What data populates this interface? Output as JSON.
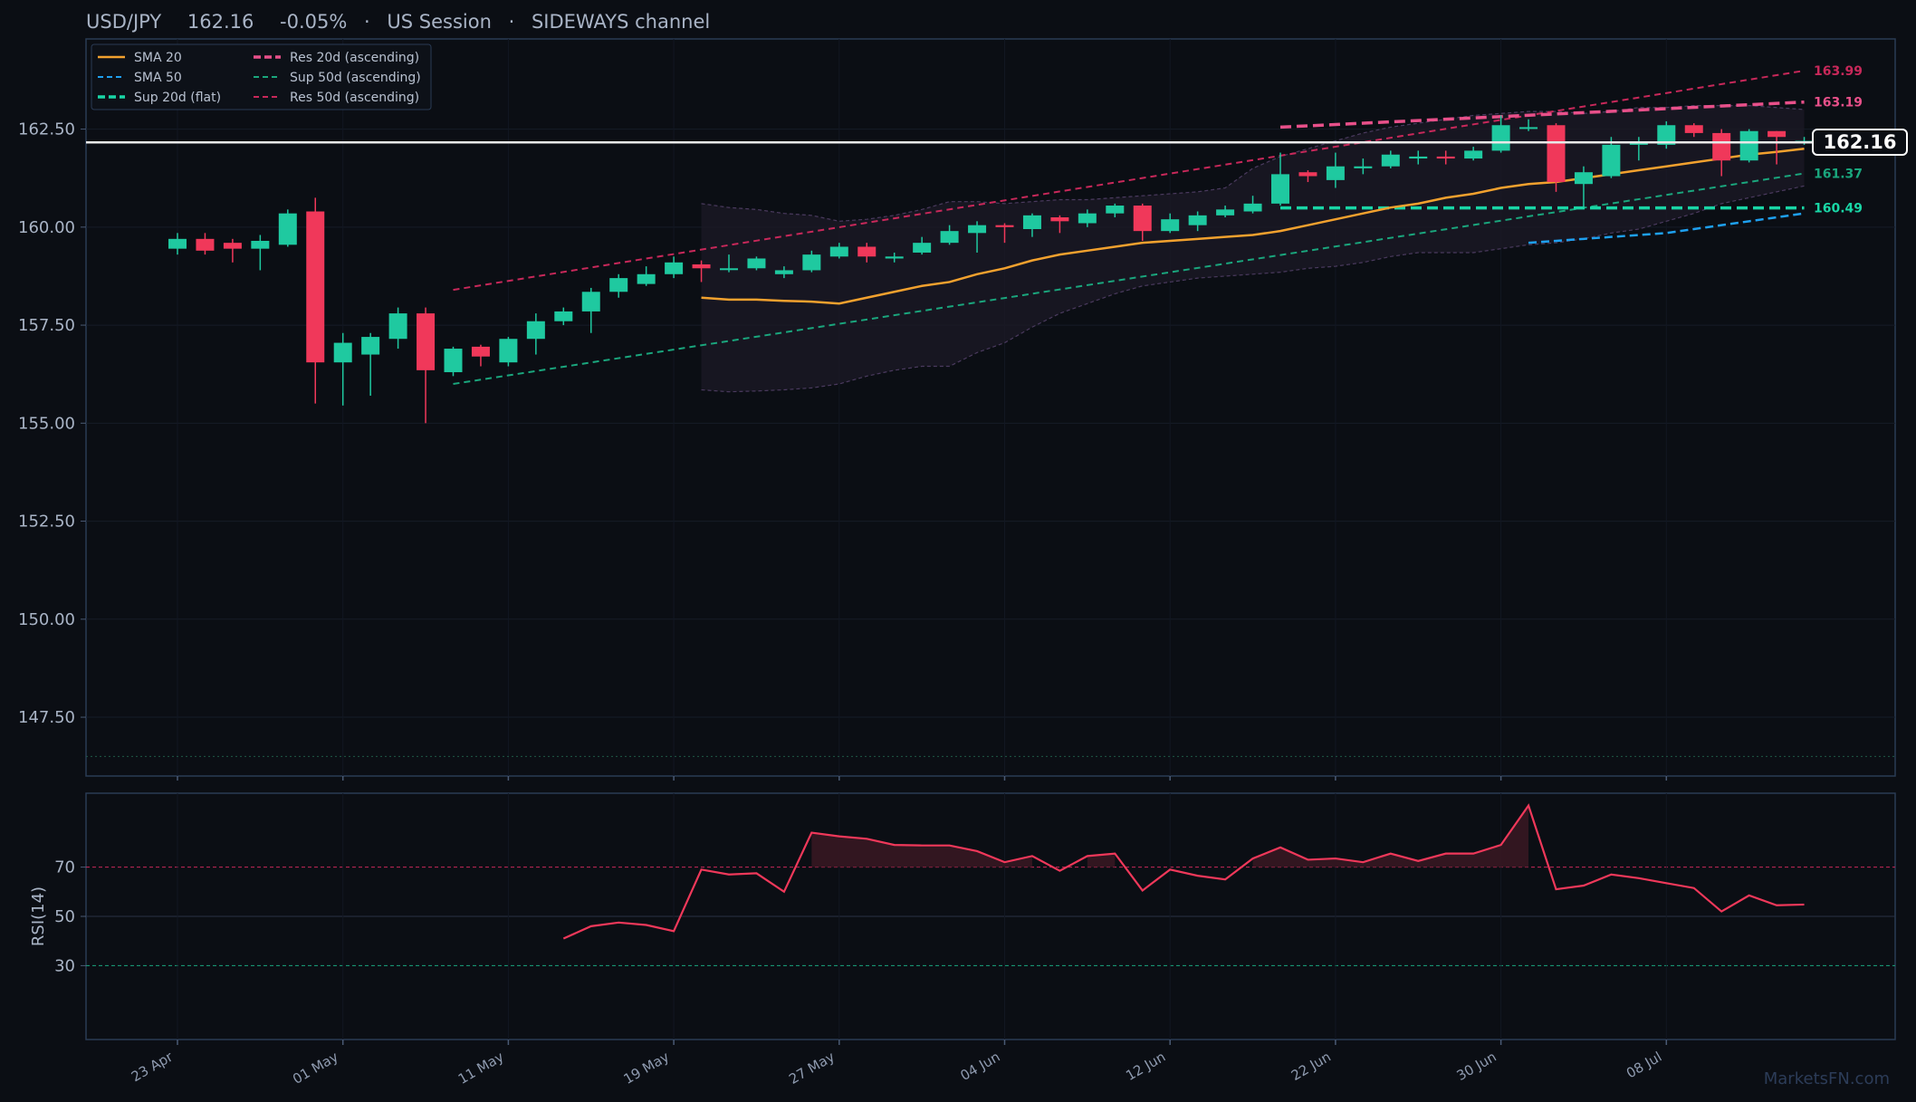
{
  "header": {
    "symbol": "USD/JPY",
    "price": "162.16",
    "change": "-0.05%",
    "session": "US Session",
    "channel": "SIDEWAYS channel"
  },
  "watermark": "MarketsFN.com",
  "current_price_label": "162.16",
  "colors": {
    "background": "#0b0e14",
    "panel_border": "#2a3b55",
    "up": "#1fc9a0",
    "down": "#f0385a",
    "sma20": "#f2a12e",
    "sma50": "#1ea0f0",
    "sup20": "#19d6a6",
    "res20": "#e8508a",
    "sup50": "#1aa67d",
    "res50": "#c8285a",
    "rsi": "#f0385a",
    "price_line": "#e8e8e8"
  },
  "legend": [
    {
      "label": "SMA 20",
      "key": "sma20",
      "dash": "solid"
    },
    {
      "label": "SMA 50",
      "key": "sma50",
      "dash": "dash"
    },
    {
      "label": "Sup 20d (flat)",
      "key": "sup20",
      "dash": "dash-bold"
    },
    {
      "label": "Res 20d (ascending)",
      "key": "res20",
      "dash": "dash-bold"
    },
    {
      "label": "Sup 50d (ascending)",
      "key": "sup50",
      "dash": "dash"
    },
    {
      "label": "Res 50d (ascending)",
      "key": "res50",
      "dash": "dash"
    }
  ],
  "end_labels": [
    {
      "text": "163.99",
      "value": 163.99,
      "key": "res50"
    },
    {
      "text": "163.19",
      "value": 163.19,
      "key": "res20"
    },
    {
      "text": "161.37",
      "value": 161.37,
      "key": "sup50"
    },
    {
      "text": "160.49",
      "value": 160.49,
      "key": "sup20"
    }
  ],
  "chart_data": [
    {
      "type": "candlestick",
      "title": "USD/JPY",
      "ylim": [
        146.0,
        164.8
      ],
      "yticks": [
        "147.50",
        "150.00",
        "152.50",
        "155.00",
        "157.50",
        "160.00",
        "162.50"
      ],
      "ytick_values": [
        147.5,
        150.0,
        152.5,
        155.0,
        157.5,
        160.0,
        162.5
      ],
      "x_tick_labels": [
        "23 Apr",
        "01 May",
        "11 May",
        "19 May",
        "27 May",
        "04 Jun",
        "12 Jun",
        "22 Jun",
        "30 Jun",
        "08 Jul"
      ],
      "x_tick_index": [
        0,
        6,
        12,
        18,
        24,
        30,
        36,
        42,
        48,
        54
      ],
      "current_price": 162.16,
      "candles": [
        {
          "o": 159.45,
          "h": 159.85,
          "l": 159.3,
          "c": 159.7
        },
        {
          "o": 159.7,
          "h": 159.85,
          "l": 159.3,
          "c": 159.4
        },
        {
          "o": 159.6,
          "h": 159.7,
          "l": 159.1,
          "c": 159.45
        },
        {
          "o": 159.45,
          "h": 159.8,
          "l": 158.9,
          "c": 159.65
        },
        {
          "o": 159.55,
          "h": 160.45,
          "l": 159.5,
          "c": 160.35
        },
        {
          "o": 160.4,
          "h": 160.75,
          "l": 155.5,
          "c": 156.55
        },
        {
          "o": 156.55,
          "h": 157.3,
          "l": 155.45,
          "c": 157.05
        },
        {
          "o": 156.75,
          "h": 157.3,
          "l": 155.7,
          "c": 157.2
        },
        {
          "o": 157.15,
          "h": 157.95,
          "l": 156.9,
          "c": 157.8
        },
        {
          "o": 157.8,
          "h": 157.95,
          "l": 155.0,
          "c": 156.35
        },
        {
          "o": 156.3,
          "h": 156.95,
          "l": 156.2,
          "c": 156.9
        },
        {
          "o": 156.95,
          "h": 157.0,
          "l": 156.45,
          "c": 156.7
        },
        {
          "o": 156.55,
          "h": 157.2,
          "l": 156.45,
          "c": 157.15
        },
        {
          "o": 157.15,
          "h": 157.8,
          "l": 156.75,
          "c": 157.6
        },
        {
          "o": 157.6,
          "h": 157.95,
          "l": 157.5,
          "c": 157.85
        },
        {
          "o": 157.85,
          "h": 158.45,
          "l": 157.3,
          "c": 158.35
        },
        {
          "o": 158.35,
          "h": 158.8,
          "l": 158.2,
          "c": 158.7
        },
        {
          "o": 158.55,
          "h": 159.0,
          "l": 158.5,
          "c": 158.8
        },
        {
          "o": 158.8,
          "h": 159.25,
          "l": 158.7,
          "c": 159.1
        },
        {
          "o": 159.05,
          "h": 159.15,
          "l": 158.6,
          "c": 158.95
        },
        {
          "o": 158.95,
          "h": 159.3,
          "l": 158.85,
          "c": 158.95
        },
        {
          "o": 158.95,
          "h": 159.25,
          "l": 158.9,
          "c": 159.2
        },
        {
          "o": 158.8,
          "h": 159.0,
          "l": 158.7,
          "c": 158.9
        },
        {
          "o": 158.9,
          "h": 159.4,
          "l": 158.85,
          "c": 159.3
        },
        {
          "o": 159.25,
          "h": 159.6,
          "l": 159.2,
          "c": 159.5
        },
        {
          "o": 159.5,
          "h": 159.6,
          "l": 159.1,
          "c": 159.25
        },
        {
          "o": 159.2,
          "h": 159.35,
          "l": 159.1,
          "c": 159.25
        },
        {
          "o": 159.35,
          "h": 159.75,
          "l": 159.3,
          "c": 159.6
        },
        {
          "o": 159.6,
          "h": 160.05,
          "l": 159.55,
          "c": 159.9
        },
        {
          "o": 159.85,
          "h": 160.15,
          "l": 159.35,
          "c": 160.05
        },
        {
          "o": 160.05,
          "h": 160.1,
          "l": 159.6,
          "c": 160.0
        },
        {
          "o": 159.95,
          "h": 160.35,
          "l": 159.75,
          "c": 160.3
        },
        {
          "o": 160.25,
          "h": 160.3,
          "l": 159.85,
          "c": 160.15
        },
        {
          "o": 160.1,
          "h": 160.45,
          "l": 160.0,
          "c": 160.35
        },
        {
          "o": 160.35,
          "h": 160.6,
          "l": 160.25,
          "c": 160.55
        },
        {
          "o": 160.55,
          "h": 160.6,
          "l": 159.65,
          "c": 159.9
        },
        {
          "o": 159.9,
          "h": 160.35,
          "l": 159.85,
          "c": 160.2
        },
        {
          "o": 160.05,
          "h": 160.4,
          "l": 159.9,
          "c": 160.3
        },
        {
          "o": 160.3,
          "h": 160.55,
          "l": 160.25,
          "c": 160.45
        },
        {
          "o": 160.4,
          "h": 160.8,
          "l": 160.35,
          "c": 160.6
        },
        {
          "o": 160.6,
          "h": 161.9,
          "l": 160.55,
          "c": 161.35
        },
        {
          "o": 161.4,
          "h": 161.45,
          "l": 161.15,
          "c": 161.3
        },
        {
          "o": 161.2,
          "h": 161.9,
          "l": 161.0,
          "c": 161.55
        },
        {
          "o": 161.5,
          "h": 161.75,
          "l": 161.35,
          "c": 161.55
        },
        {
          "o": 161.55,
          "h": 161.95,
          "l": 161.5,
          "c": 161.85
        },
        {
          "o": 161.75,
          "h": 161.95,
          "l": 161.6,
          "c": 161.8
        },
        {
          "o": 161.8,
          "h": 161.95,
          "l": 161.6,
          "c": 161.75
        },
        {
          "o": 161.75,
          "h": 162.05,
          "l": 161.7,
          "c": 161.95
        },
        {
          "o": 161.95,
          "h": 162.85,
          "l": 161.9,
          "c": 162.6
        },
        {
          "o": 162.55,
          "h": 162.75,
          "l": 162.45,
          "c": 162.55
        },
        {
          "o": 162.6,
          "h": 162.65,
          "l": 160.9,
          "c": 161.15
        },
        {
          "o": 161.1,
          "h": 161.55,
          "l": 160.5,
          "c": 161.4
        },
        {
          "o": 161.3,
          "h": 162.3,
          "l": 161.25,
          "c": 162.1
        },
        {
          "o": 162.1,
          "h": 162.3,
          "l": 161.7,
          "c": 162.15
        },
        {
          "o": 162.1,
          "h": 162.7,
          "l": 162.0,
          "c": 162.6
        },
        {
          "o": 162.6,
          "h": 162.65,
          "l": 162.3,
          "c": 162.4
        },
        {
          "o": 162.4,
          "h": 162.5,
          "l": 161.3,
          "c": 161.7
        },
        {
          "o": 161.7,
          "h": 162.5,
          "l": 161.65,
          "c": 162.45
        },
        {
          "o": 162.45,
          "h": 162.45,
          "l": 161.6,
          "c": 162.3
        },
        {
          "o": 162.2,
          "h": 162.3,
          "l": 162.1,
          "c": 162.2
        }
      ],
      "sma20": {
        "start": 19,
        "values": [
          158.2,
          158.15,
          158.15,
          158.12,
          158.1,
          158.05,
          158.2,
          158.35,
          158.5,
          158.6,
          158.8,
          158.95,
          159.15,
          159.3,
          159.4,
          159.5,
          159.6,
          159.65,
          159.7,
          159.75,
          159.8,
          159.9,
          160.05,
          160.2,
          160.35,
          160.5,
          160.6,
          160.75,
          160.85,
          161.0,
          161.1,
          161.15,
          161.25,
          161.35,
          161.45,
          161.55,
          161.65,
          161.75,
          161.85,
          161.92,
          162.0
        ]
      },
      "sma50": {
        "start": 49,
        "values": [
          159.6,
          159.65,
          159.7,
          159.75,
          159.8,
          159.85,
          159.95,
          160.05,
          160.15,
          160.25,
          160.35
        ]
      },
      "bollinger": {
        "start": 19,
        "upper": [
          160.6,
          160.5,
          160.45,
          160.35,
          160.3,
          160.15,
          160.2,
          160.3,
          160.45,
          160.65,
          160.65,
          160.6,
          160.65,
          160.7,
          160.7,
          160.75,
          160.8,
          160.85,
          160.9,
          161.0,
          161.5,
          161.8,
          162.0,
          162.2,
          162.4,
          162.55,
          162.65,
          162.75,
          162.85,
          162.9,
          162.95,
          162.95,
          162.9,
          162.95,
          163.05,
          163.05,
          163.1,
          163.1,
          163.1,
          163.05,
          163.0
        ],
        "lower": [
          155.85,
          155.8,
          155.82,
          155.85,
          155.9,
          156.0,
          156.2,
          156.35,
          156.45,
          156.45,
          156.8,
          157.05,
          157.45,
          157.8,
          158.05,
          158.3,
          158.5,
          158.6,
          158.7,
          158.75,
          158.8,
          158.85,
          158.95,
          159.0,
          159.1,
          159.25,
          159.35,
          159.35,
          159.35,
          159.45,
          159.55,
          159.6,
          159.7,
          159.85,
          159.95,
          160.15,
          160.35,
          160.6,
          160.75,
          160.9,
          161.05
        ]
      },
      "levels": {
        "res50": [
          [
            10,
            158.4
          ],
          [
            59,
            163.99
          ]
        ],
        "sup50": [
          [
            10,
            156.0
          ],
          [
            59,
            161.37
          ]
        ],
        "res20": [
          [
            40,
            162.55
          ],
          [
            59,
            163.19
          ]
        ],
        "sup20": [
          [
            40,
            160.49
          ],
          [
            59,
            160.49
          ]
        ],
        "floor": 146.5
      }
    },
    {
      "type": "line",
      "ylabel": "RSI(14)",
      "ylim": [
        0,
        100
      ],
      "yticks": [
        "30",
        "50",
        "70"
      ],
      "ytick_values": [
        30,
        50,
        70
      ],
      "rsi_start": 14,
      "rsi": [
        41,
        46,
        47.5,
        46.5,
        44,
        69,
        67,
        67.5,
        60,
        84,
        82.5,
        81.5,
        79,
        78.8,
        78.8,
        76.5,
        72,
        74.5,
        68.5,
        74.5,
        75.5,
        60.5,
        69,
        66.5,
        65,
        73.5,
        78,
        73,
        73.5,
        72,
        75.5,
        72.5,
        75.5,
        75.5,
        79,
        95,
        61,
        62.5,
        67,
        65.5,
        63.5,
        61.5,
        52,
        58.5,
        54.5,
        54.8
      ]
    }
  ]
}
